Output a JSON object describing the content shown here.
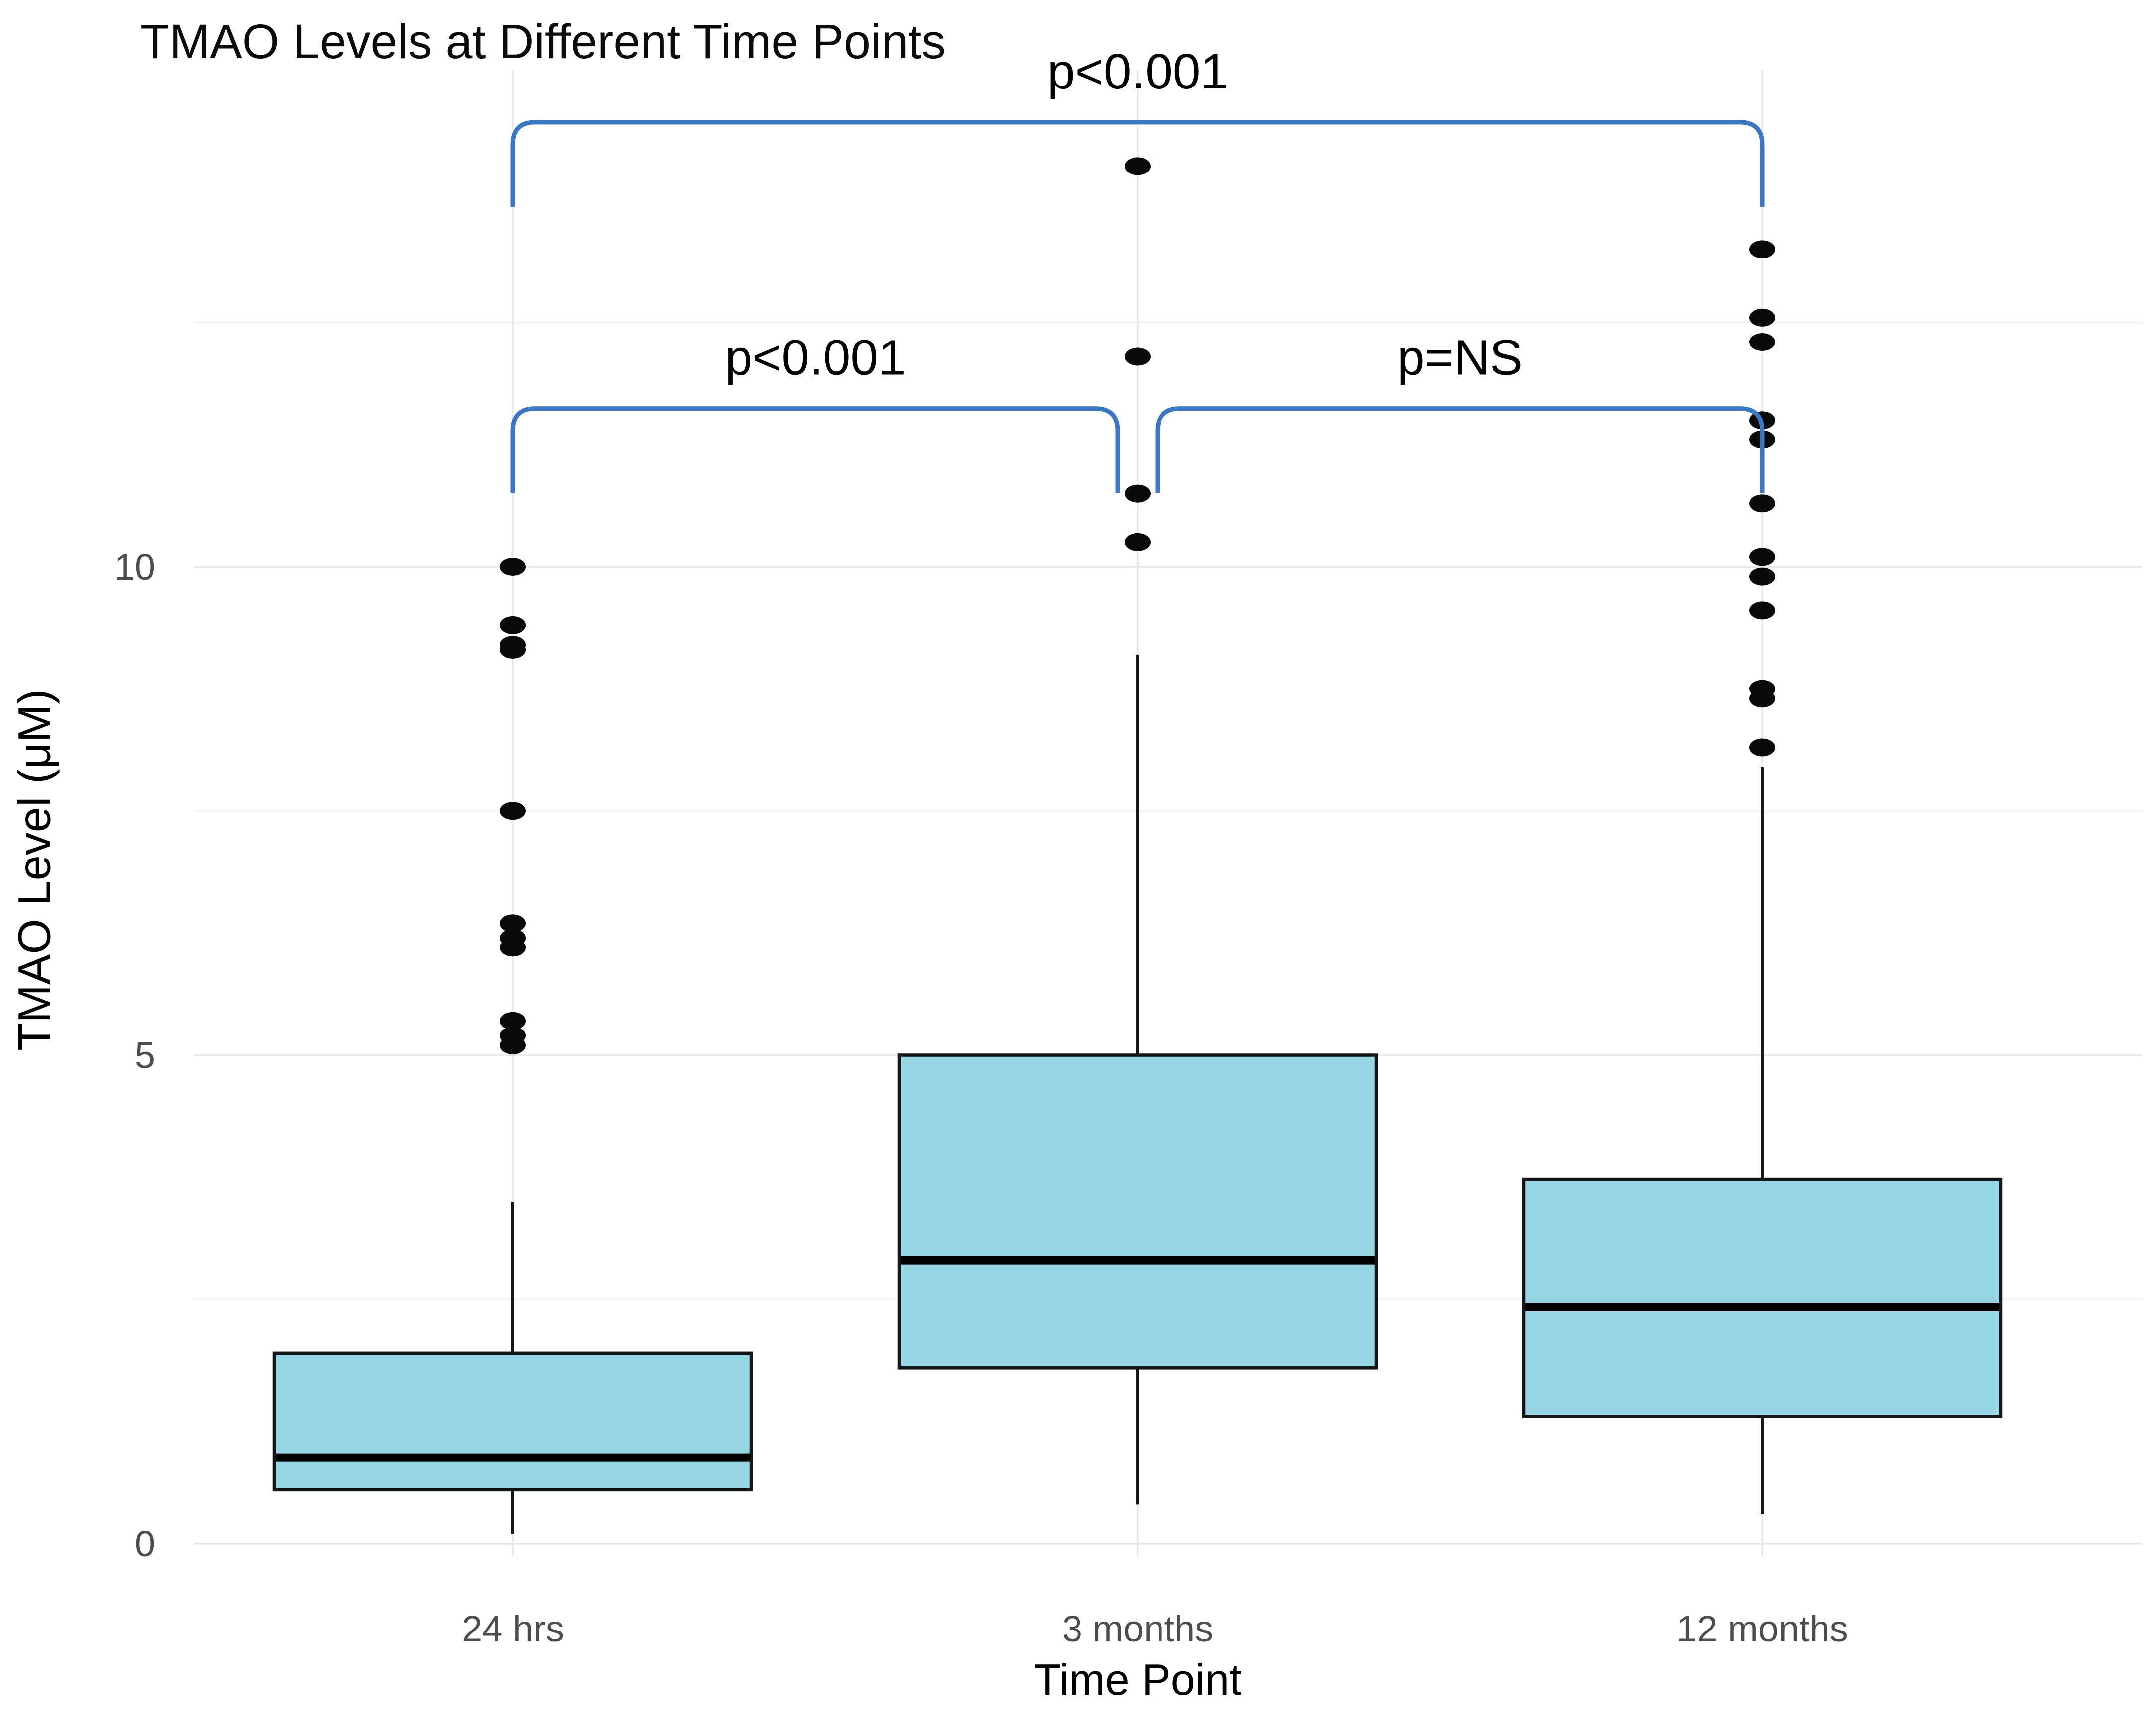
{
  "title": "TMAO Levels at Different Time Points",
  "chart_data": {
    "type": "box",
    "title": "TMAO Levels at Different Time Points",
    "xlabel": "Time Point",
    "ylabel": "TMAO Level (μM)",
    "categories": [
      "24 hrs",
      "3 months",
      "12 months"
    ],
    "y_ticks": [
      0,
      5,
      10
    ],
    "y_minor_ticks": [
      2.5,
      7.5,
      12.5
    ],
    "ylim": [
      0,
      14.8
    ],
    "grid": "on",
    "legend": "none",
    "series": [
      {
        "name": "24 hrs",
        "whisker_low": 0.1,
        "q1": 0.55,
        "median": 0.88,
        "q3": 1.95,
        "whisker_high": 3.5,
        "outliers": [
          5.1,
          5.2,
          5.35,
          6.1,
          6.2,
          6.35,
          7.5,
          9.15,
          9.2,
          9.4,
          10.0
        ]
      },
      {
        "name": "3 months",
        "whisker_low": 0.4,
        "q1": 1.8,
        "median": 2.9,
        "q3": 5.0,
        "whisker_high": 9.1,
        "outliers": [
          10.25,
          10.75,
          12.15,
          14.1
        ]
      },
      {
        "name": "12 months",
        "whisker_low": 0.3,
        "q1": 1.3,
        "median": 2.42,
        "q3": 3.73,
        "whisker_high": 7.95,
        "outliers": [
          8.15,
          8.65,
          8.75,
          9.55,
          9.9,
          10.1,
          10.65,
          11.3,
          11.5,
          12.3,
          12.55,
          13.25
        ]
      }
    ],
    "annotations": [
      {
        "label": "p<0.001",
        "from": 0,
        "to": 2,
        "y": 14.55
      },
      {
        "label": "p<0.001",
        "from": 0,
        "to": 1,
        "y": 11.62
      },
      {
        "label": "p=NS",
        "from": 1,
        "to": 2,
        "y": 11.62
      }
    ],
    "colors": {
      "background": "#ffffff",
      "box_fill": "#95D7E2",
      "box_border": "#161616",
      "median": "#000000",
      "whisker": "#161616",
      "outlier": "#0a0a0a",
      "bracket": "#3778C8",
      "grid_major": "#e7e7e7",
      "grid_minor": "#f2f2f2",
      "grid_vertical": "#e9e9e9",
      "tick_label": "#4d4d4d",
      "text": "#000000"
    }
  }
}
